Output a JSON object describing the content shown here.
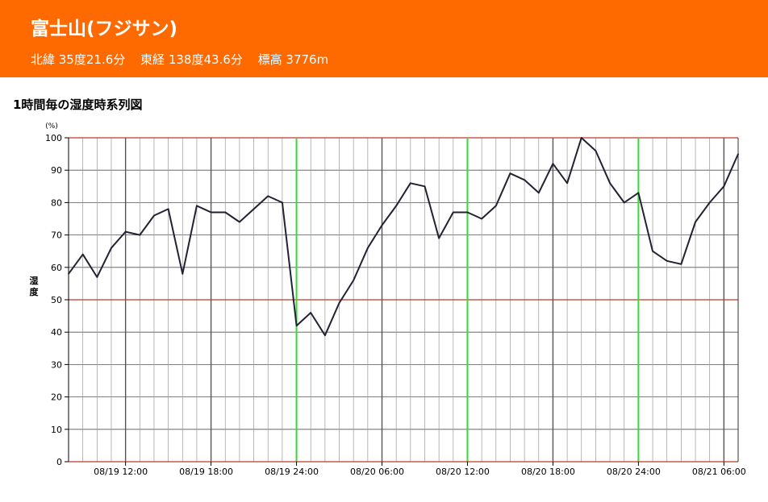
{
  "header": {
    "station_name": "富士山(フジサン)",
    "latitude": "北緯 35度21.6分",
    "longitude": "東経 138度43.6分",
    "elevation": "標高 3776m"
  },
  "colors": {
    "header_bg": "#ff6a00",
    "line": "#222233",
    "grid_major": "#555555",
    "grid_minor": "#999999",
    "ref_line": "#c0392b",
    "day_line": "#33dd33"
  },
  "chart_data": {
    "type": "line",
    "title": "1時間毎の湿度時系列図",
    "ylabel": "湿度",
    "yunit": "(%)",
    "ylim": [
      0,
      100
    ],
    "yticks": [
      0,
      10,
      20,
      30,
      40,
      50,
      60,
      70,
      80,
      90,
      100
    ],
    "grid": true,
    "x": [
      "08/19 08:00",
      "08/19 09:00",
      "08/19 10:00",
      "08/19 11:00",
      "08/19 12:00",
      "08/19 13:00",
      "08/19 14:00",
      "08/19 15:00",
      "08/19 16:00",
      "08/19 17:00",
      "08/19 18:00",
      "08/19 19:00",
      "08/19 20:00",
      "08/19 21:00",
      "08/19 22:00",
      "08/19 23:00",
      "08/19 24:00",
      "08/20 01:00",
      "08/20 02:00",
      "08/20 03:00",
      "08/20 04:00",
      "08/20 05:00",
      "08/20 06:00",
      "08/20 07:00",
      "08/20 08:00",
      "08/20 09:00",
      "08/20 10:00",
      "08/20 11:00",
      "08/20 12:00",
      "08/20 13:00",
      "08/20 14:00",
      "08/20 15:00",
      "08/20 16:00",
      "08/20 17:00",
      "08/20 18:00",
      "08/20 19:00",
      "08/20 20:00",
      "08/20 21:00",
      "08/20 22:00",
      "08/20 23:00",
      "08/20 24:00",
      "08/21 01:00",
      "08/21 02:00",
      "08/21 03:00",
      "08/21 04:00",
      "08/21 05:00",
      "08/21 06:00",
      "08/21 07:00"
    ],
    "series": [
      {
        "values": [
          58,
          64,
          57,
          66,
          71,
          70,
          76,
          78,
          58,
          79,
          77,
          77,
          74,
          78,
          82,
          80,
          42,
          46,
          39,
          49,
          56,
          66,
          73,
          79,
          86,
          85,
          69,
          77,
          77,
          75,
          79,
          89,
          87,
          83,
          92,
          86,
          100,
          96,
          86,
          80,
          83,
          65,
          62,
          61,
          74,
          80,
          85,
          95
        ]
      }
    ],
    "xtick_labels": [
      {
        "x": "08/19 12:00",
        "label": "08/19 12:00"
      },
      {
        "x": "08/19 18:00",
        "label": "08/19 18:00"
      },
      {
        "x": "08/19 24:00",
        "label": "08/19 24:00"
      },
      {
        "x": "08/20 06:00",
        "label": "08/20 06:00"
      },
      {
        "x": "08/20 12:00",
        "label": "08/20 12:00"
      },
      {
        "x": "08/20 18:00",
        "label": "08/20 18:00"
      },
      {
        "x": "08/20 24:00",
        "label": "08/20 24:00"
      },
      {
        "x": "08/21 06:00",
        "label": "08/21 06:00"
      }
    ],
    "reference_lines_y": [
      50,
      100
    ],
    "day_boundaries": [
      "08/19 24:00",
      "08/20 12:00",
      "08/20 24:00"
    ]
  }
}
